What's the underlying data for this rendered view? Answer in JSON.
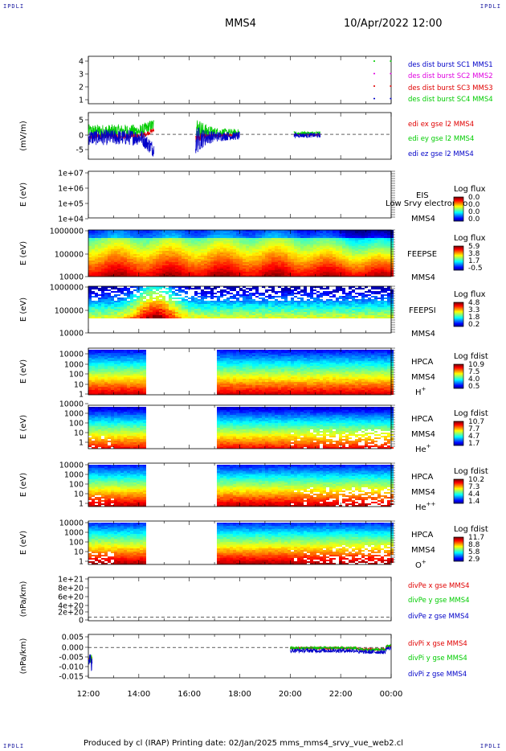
{
  "header": {
    "corner_label": "IPDLI",
    "title": "MMS4",
    "date": "10/Apr/2022 12:00"
  },
  "footer": {
    "text": "Produced by cl (IRAP)   Printing date: 02/Jan/2025   mms_mms4_srvy_vue_web2.cl"
  },
  "chart_data": {
    "type": "multi-panel time series / spectrogram",
    "time_axis": {
      "range": [
        "12:00",
        "00:00"
      ],
      "ticks": [
        "12:00",
        "14:00",
        "16:00",
        "18:00",
        "20:00",
        "22:00",
        "00:00"
      ]
    },
    "colors": {
      "red": "#e00000",
      "green": "#00cc00",
      "blue": "#0000c8",
      "magenta": "#e000e0"
    },
    "panels": [
      {
        "id": "burst",
        "type": "scatter",
        "ylabel": "",
        "yticks": [
          "1",
          "2",
          "3",
          "4"
        ],
        "ylim": [
          0.6,
          4.4
        ],
        "legend": [
          {
            "label": "des dist burst SC1 MMS1",
            "color": "#0000c8"
          },
          {
            "label": "des dist burst SC2 MMS2",
            "color": "#e000e0"
          },
          {
            "label": "des dist burst SC3 MMS3",
            "color": "#e00000"
          },
          {
            "label": "des dist burst SC4 MMS4",
            "color": "#00cc00"
          }
        ],
        "series": [
          {
            "level": 4,
            "color": "#00cc00",
            "t": [
              23.3,
              23.95
            ]
          },
          {
            "level": 3,
            "color": "#e000e0",
            "t": [
              23.3,
              23.95
            ]
          },
          {
            "level": 2,
            "color": "#e00000",
            "t": [
              23.3,
              23.95
            ]
          },
          {
            "level": 1,
            "color": "#0000c8",
            "t": [
              23.3,
              23.95
            ]
          }
        ]
      },
      {
        "id": "edi",
        "type": "line",
        "ylabel": "(mV/m)",
        "yticks": [
          "5",
          "0",
          "-5"
        ],
        "ylim": [
          -8,
          7
        ],
        "legend": [
          {
            "label": "edi ex gse l2 MMS4",
            "color": "#e00000"
          },
          {
            "label": "edi ey gse l2 MMS4",
            "color": "#00cc00"
          },
          {
            "label": "edi ez gse l2 MMS4",
            "color": "#0000c8"
          }
        ],
        "segments": [
          [
            12.0,
            14.6
          ],
          [
            16.25,
            18.0
          ],
          [
            20.15,
            21.2
          ]
        ]
      },
      {
        "id": "eis",
        "type": "heatmap",
        "ylabel": "E (eV)",
        "yticks": [
          "1e+07",
          "1e+06",
          "1e+05",
          "1e+04"
        ],
        "empty": true,
        "instrument": "EIS",
        "spacecraft": "MMS4",
        "overlay": "Low Srvy electron to",
        "colorbar": {
          "title": "Log flux",
          "labels": [
            "0.0",
            "0.0",
            "0.0",
            "0.0"
          ]
        }
      },
      {
        "id": "feepse",
        "type": "heatmap",
        "ylabel": "E (eV)",
        "yticks": [
          "1000000",
          "100000",
          "10000"
        ],
        "instrument": "FEEPSE",
        "spacecraft": "MMS4",
        "colorbar": {
          "title": "Log flux",
          "labels": [
            "5.9",
            "3.8",
            "1.7",
            "-0.5"
          ]
        }
      },
      {
        "id": "feepsi",
        "type": "heatmap",
        "ylabel": "E (eV)",
        "yticks": [
          "1000000",
          "100000",
          "10000"
        ],
        "instrument": "FEEPSI",
        "spacecraft": "MMS4",
        "colorbar": {
          "title": "Log flux",
          "labels": [
            "4.8",
            "3.3",
            "1.8",
            "0.2"
          ]
        }
      },
      {
        "id": "hpca_h",
        "type": "heatmap",
        "ylabel": "E (eV)",
        "yticks": [
          "10000",
          "1000",
          "100",
          "10",
          "1"
        ],
        "instrument": "HPCA",
        "spacecraft": "MMS4",
        "species_base": "H",
        "species_sup": "+",
        "gap": [
          14.2,
          17.0
        ],
        "colorbar": {
          "title": "Log fdist",
          "labels": [
            "10.9",
            "7.5",
            "4.0",
            "0.5"
          ]
        }
      },
      {
        "id": "hpca_he",
        "type": "heatmap",
        "ylabel": "E (eV)",
        "yticks": [
          "10000",
          "1000",
          "100",
          "10",
          "1"
        ],
        "instrument": "HPCA",
        "spacecraft": "MMS4",
        "species_base": "He",
        "species_sup": "+",
        "gap": [
          14.2,
          17.0
        ],
        "colorbar": {
          "title": "Log fdist",
          "labels": [
            "10.7",
            "7.7",
            "4.7",
            "1.7"
          ]
        }
      },
      {
        "id": "hpca_hepp",
        "type": "heatmap",
        "ylabel": "E (eV)",
        "yticks": [
          "10000",
          "1000",
          "100",
          "10",
          "1"
        ],
        "instrument": "HPCA",
        "spacecraft": "MMS4",
        "species_base": "He",
        "species_sup": "++",
        "gap": [
          14.2,
          17.0
        ],
        "colorbar": {
          "title": "Log fdist",
          "labels": [
            "10.2",
            "7.3",
            "4.4",
            "1.4"
          ]
        }
      },
      {
        "id": "hpca_o",
        "type": "heatmap",
        "ylabel": "E (eV)",
        "yticks": [
          "10000",
          "1000",
          "100",
          "10",
          "1"
        ],
        "instrument": "HPCA",
        "spacecraft": "MMS4",
        "species_base": "O",
        "species_sup": "+",
        "gap": [
          14.2,
          17.0
        ],
        "colorbar": {
          "title": "Log fdist",
          "labels": [
            "11.7",
            "8.8",
            "5.8",
            "2.9"
          ]
        }
      },
      {
        "id": "divpe",
        "type": "line",
        "ylabel": "(nPa/km)",
        "yticks": [
          "1e+21",
          "8e+20",
          "6e+20",
          "4e+20",
          "2e+20",
          "0"
        ],
        "ylim": [
          -1e+20,
          1.05e+21
        ],
        "empty": true,
        "legend": [
          {
            "label": "divPe x gse MMS4",
            "color": "#e00000"
          },
          {
            "label": "divPe y gse MMS4",
            "color": "#00cc00"
          },
          {
            "label": "divPe z gse MMS4",
            "color": "#0000c8"
          }
        ]
      },
      {
        "id": "divpi",
        "type": "line",
        "ylabel": "(nPa/km)",
        "yticks": [
          "0.005",
          "0.000",
          "-0.005",
          "-0.010",
          "-0.015"
        ],
        "ylim": [
          -0.0175,
          0.0075
        ],
        "legend": [
          {
            "label": "divPi x gse MMS4",
            "color": "#e00000"
          },
          {
            "label": "divPi y gse MMS4",
            "color": "#00cc00"
          },
          {
            "label": "divPi z gse MMS4",
            "color": "#0000c8"
          }
        ],
        "segments": [
          [
            12.0,
            12.15
          ],
          [
            20.0,
            24.0
          ]
        ]
      }
    ]
  }
}
